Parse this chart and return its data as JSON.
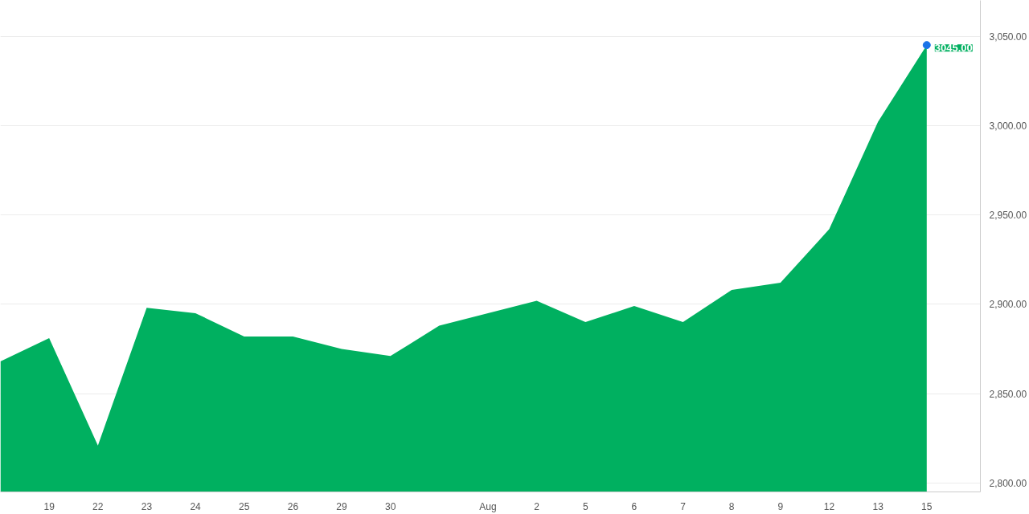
{
  "chart_data": {
    "type": "area",
    "categories": [
      null,
      "19",
      "22",
      "23",
      "24",
      "25",
      "26",
      "29",
      "30",
      null,
      "Aug",
      "2",
      "5",
      "6",
      "7",
      "8",
      "9",
      "12",
      "13",
      "15"
    ],
    "series": [
      {
        "color": "#00b060",
        "values": [
          2868,
          2881,
          2821,
          2898,
          2895,
          2882,
          2882,
          2875,
          2871,
          2888,
          2895,
          2902,
          2890,
          2899,
          2890,
          2908,
          2912,
          2942,
          3002,
          3045
        ],
        "value_labels": [
          null,
          null,
          null,
          null,
          null,
          null,
          null,
          null,
          null,
          null,
          null,
          null,
          null,
          null,
          null,
          null,
          null,
          null,
          null,
          "3045.00"
        ]
      }
    ],
    "ylim": [
      2795,
      3070
    ],
    "yticks": [
      {
        "value": 2800,
        "label": "2,800.00"
      },
      {
        "value": 2850,
        "label": "2,850.00"
      },
      {
        "value": 2900,
        "label": "2,900.00"
      },
      {
        "value": 2950,
        "label": "2,950.00"
      },
      {
        "value": 3000,
        "label": "3,000.00"
      },
      {
        "value": 3050,
        "label": "3,050.00"
      }
    ],
    "grid": "y"
  }
}
